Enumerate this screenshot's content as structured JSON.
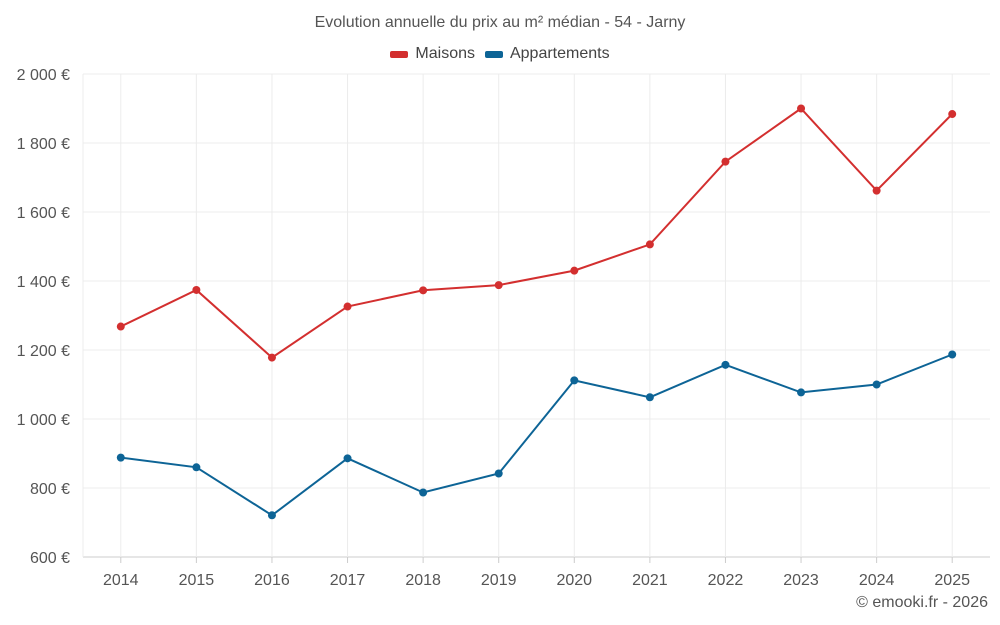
{
  "chart_data": {
    "type": "line",
    "title": "Evolution annuelle du prix au m² médian - 54 - Jarny",
    "categories": [
      "2014",
      "2015",
      "2016",
      "2017",
      "2018",
      "2019",
      "2020",
      "2021",
      "2022",
      "2023",
      "2024",
      "2025"
    ],
    "series": [
      {
        "name": "Maisons",
        "color": "#d32f2f",
        "values": [
          1268,
          1374,
          1178,
          1326,
          1373,
          1388,
          1430,
          1506,
          1746,
          1900,
          1662,
          1884
        ]
      },
      {
        "name": "Appartements",
        "color": "#0d6496",
        "values": [
          888,
          860,
          721,
          886,
          787,
          842,
          1112,
          1063,
          1157,
          1077,
          1100,
          1187
        ]
      }
    ],
    "ylim": [
      600,
      2000
    ],
    "yticks": [
      600,
      800,
      1000,
      1200,
      1400,
      1600,
      1800,
      2000
    ],
    "ytick_labels": [
      "600 €",
      "800 €",
      "1 000 €",
      "1 200 €",
      "1 400 €",
      "1 600 €",
      "1 800 €",
      "2 000 €"
    ],
    "xlabel": "",
    "ylabel": "",
    "grid": true,
    "legend_position": "top-center"
  },
  "credit": "© emooki.fr - 2026"
}
